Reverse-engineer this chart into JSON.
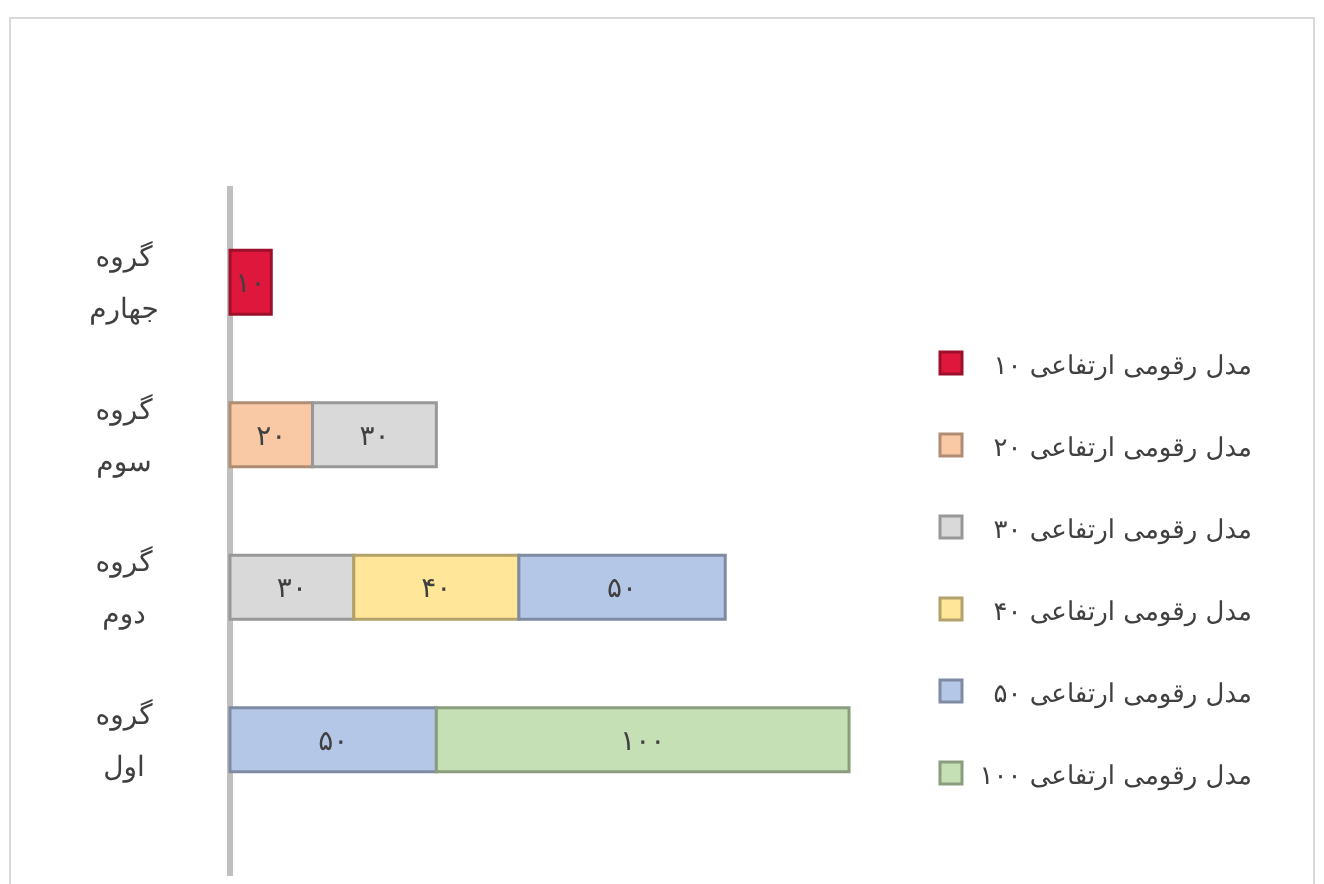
{
  "chart_data": {
    "type": "bar",
    "orientation": "horizontal",
    "stacked": true,
    "legend": "right",
    "tick_labels": "y",
    "categories": [
      "گروه جهارم",
      "گروه سوم",
      "گروه دوم",
      "گروه اول"
    ],
    "series": [
      {
        "name": "مدل رقومی ارتفاعی ۱۰",
        "color": "#e0173d",
        "values": [
          10,
          null,
          null,
          null
        ],
        "value_labels": [
          "۱۰",
          null,
          null,
          null
        ]
      },
      {
        "name": "مدل رقومی ارتفاعی ۲۰",
        "color": "#f9c9a6",
        "values": [
          null,
          20,
          null,
          null
        ],
        "value_labels": [
          null,
          "۲۰",
          null,
          null
        ]
      },
      {
        "name": "مدل رقومی ارتفاعی ۳۰",
        "color": "#d9d9d9",
        "values": [
          null,
          30,
          30,
          null
        ],
        "value_labels": [
          null,
          "۳۰",
          "۳۰",
          null
        ]
      },
      {
        "name": "مدل رقومی ارتفاعی ۴۰",
        "color": "#ffe699",
        "values": [
          null,
          null,
          40,
          null
        ],
        "value_labels": [
          null,
          null,
          "۴۰",
          null
        ]
      },
      {
        "name": "مدل رقومی ارتفاعی ۵۰",
        "color": "#b4c7e7",
        "values": [
          null,
          null,
          50,
          50
        ],
        "value_labels": [
          null,
          null,
          "۵۰",
          "۵۰"
        ]
      },
      {
        "name": "مدل رقومی ارتفاعی ۱۰۰",
        "color": "#c5e0b4",
        "values": [
          null,
          null,
          null,
          100
        ],
        "value_labels": [
          null,
          null,
          null,
          "۱۰۰"
        ]
      }
    ]
  }
}
